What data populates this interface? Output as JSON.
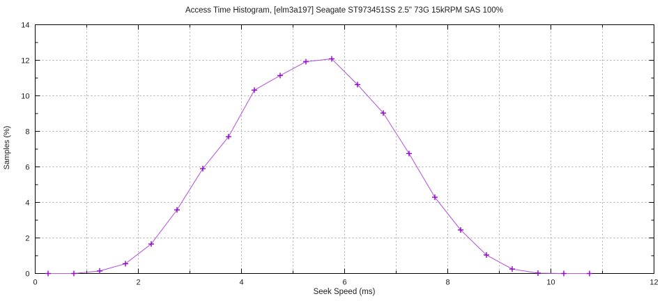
{
  "chart_data": {
    "type": "line",
    "title": "Access Time Histogram, [elm3a197] Seagate ST973451SS 2.5\" 73G 15kRPM SAS 100%",
    "xlabel": "Seek Speed (ms)",
    "ylabel": "Samples (%)",
    "xlim": [
      0,
      12
    ],
    "ylim": [
      0,
      14
    ],
    "xtick_values": [
      0,
      2,
      4,
      6,
      8,
      10,
      12
    ],
    "xtick_labels": [
      "0",
      "2",
      "4",
      "6",
      "8",
      "10",
      "12"
    ],
    "ytick_values": [
      0,
      2,
      4,
      6,
      8,
      10,
      12,
      14
    ],
    "ytick_labels": [
      "0",
      "2",
      "4",
      "6",
      "8",
      "10",
      "12",
      "14"
    ],
    "x_minor_step": 1,
    "y_minor_step": 1,
    "grid": {
      "on": true,
      "x_every": 1,
      "y_every": 2,
      "color": "#ababab"
    },
    "legend": "none",
    "colors": {
      "line": "#b55ddd",
      "marker": "#9102cf",
      "border": "#000000",
      "text": "#1c1c1c",
      "background": "#ffffff"
    },
    "series": [
      {
        "name": "seek-time-histogram",
        "marker": "plus",
        "x": [
          0.25,
          0.75,
          1.25,
          1.75,
          2.25,
          2.75,
          3.25,
          3.75,
          4.25,
          4.75,
          5.25,
          5.75,
          6.25,
          6.75,
          7.25,
          7.75,
          8.25,
          8.75,
          9.25,
          9.75,
          10.25,
          10.75
        ],
        "y": [
          0,
          0,
          0.14,
          0.55,
          1.66,
          3.58,
          5.9,
          7.7,
          10.32,
          11.14,
          11.92,
          12.08,
          10.63,
          9.03,
          6.75,
          4.29,
          2.45,
          1.04,
          0.25,
          0.02,
          0,
          0
        ]
      }
    ]
  }
}
